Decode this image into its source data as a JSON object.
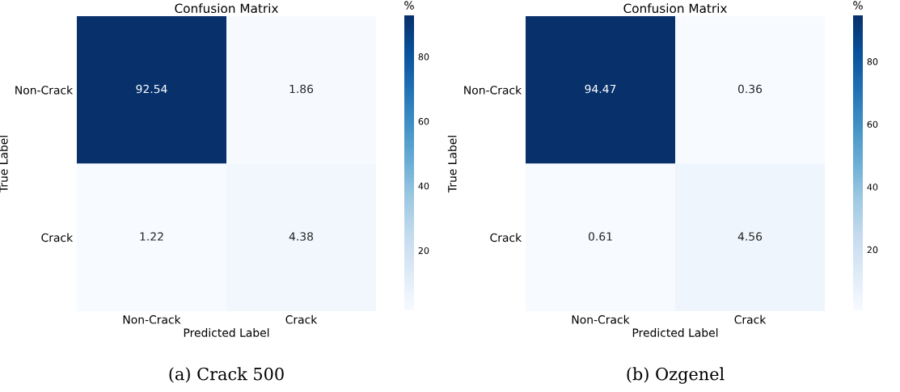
{
  "chart_data": [
    {
      "type": "heatmap",
      "title": "Confusion Matrix",
      "xlabel": "Predicted Label",
      "ylabel": "True Label",
      "clabel": "%",
      "categories": [
        "Non-Crack",
        "Crack"
      ],
      "y_categories": [
        "Non-Crack",
        "Crack"
      ],
      "cells": [
        [
          92.54,
          1.86
        ],
        [
          1.22,
          4.38
        ]
      ],
      "data_labels": true,
      "clim": [
        1.22,
        92.54
      ],
      "cticks": [
        20,
        40,
        60,
        80
      ],
      "annotations": [
        "(a) Crack 500"
      ]
    },
    {
      "type": "heatmap",
      "title": "Confusion Matrix",
      "xlabel": "Predicted Label",
      "ylabel": "True Label",
      "clabel": "%",
      "categories": [
        "Non-Crack",
        "Crack"
      ],
      "y_categories": [
        "Non-Crack",
        "Crack"
      ],
      "cells": [
        [
          94.47,
          0.36
        ],
        [
          0.61,
          4.56
        ]
      ],
      "data_labels": true,
      "clim": [
        0.36,
        94.47
      ],
      "cticks": [
        20,
        40,
        60,
        80
      ],
      "annotations": [
        "(b) Ozgenel"
      ]
    }
  ]
}
